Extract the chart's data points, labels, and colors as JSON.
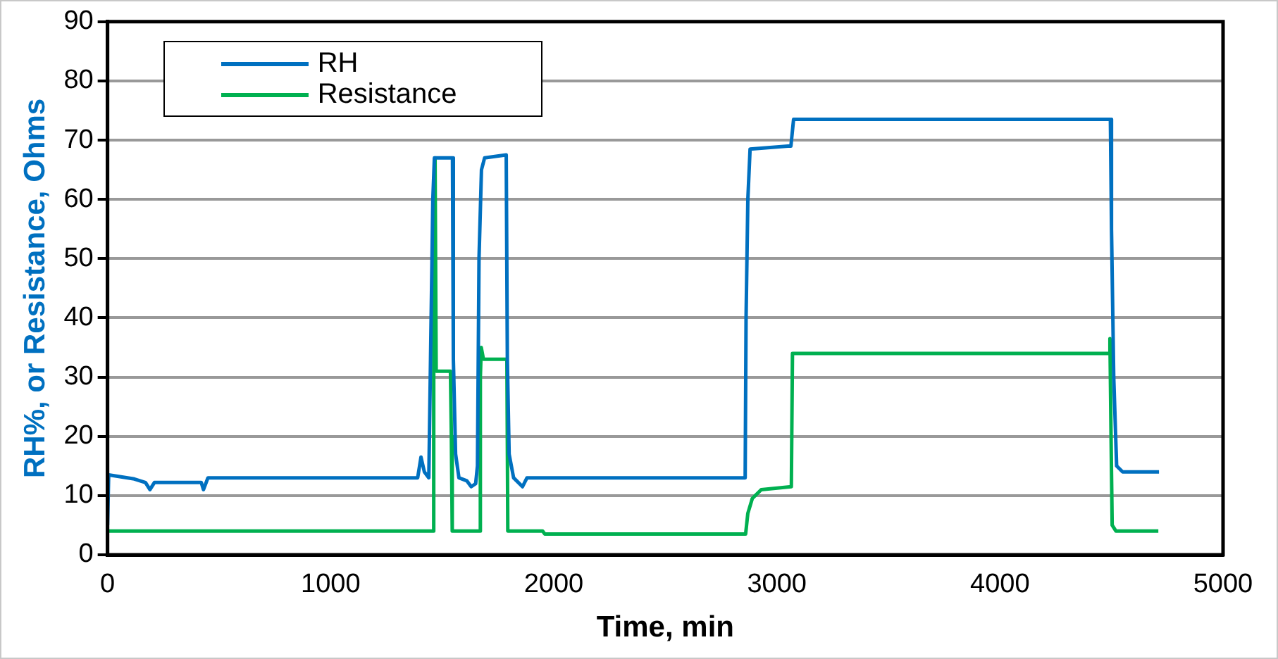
{
  "chart_data": {
    "type": "line",
    "xlabel": "Time, min",
    "ylabel": "RH%, or Resistance, Ohms",
    "xlim": [
      0,
      5000
    ],
    "xticks": [
      0,
      1000,
      2000,
      3000,
      4000,
      5000
    ],
    "ylim": [
      0,
      90
    ],
    "yticks": [
      0,
      10,
      20,
      30,
      40,
      50,
      60,
      70,
      80,
      90
    ],
    "grid": "y",
    "legend": "top left",
    "marker": "none",
    "line_style": "solid",
    "series": [
      {
        "name": "RH",
        "color": "#0070c0",
        "x": [
          0,
          5,
          120,
          170,
          190,
          210,
          420,
          430,
          450,
          700,
          1390,
          1405,
          1420,
          1440,
          1458,
          1465,
          1546,
          1550,
          1560,
          1575,
          1610,
          1630,
          1650,
          1658,
          1665,
          1676,
          1690,
          1787,
          1792,
          1800,
          1820,
          1860,
          1880,
          2858,
          2862,
          2870,
          2880,
          3050,
          3063,
          3075,
          4495,
          4500,
          4510,
          4523,
          4550,
          4713
        ],
        "values": [
          5,
          13.5,
          12.8,
          12.2,
          11,
          12.2,
          12.2,
          11,
          13,
          13,
          13,
          16.5,
          14,
          13,
          60,
          67,
          67,
          33,
          17,
          13,
          12.5,
          11.5,
          12,
          15,
          50,
          65,
          67,
          67.5,
          33,
          17,
          13,
          11.5,
          13,
          13,
          40,
          60,
          68.5,
          69,
          69,
          73.5,
          73.5,
          55,
          30,
          15,
          14,
          14
        ]
      },
      {
        "name": "Resistance",
        "color": "#00b050",
        "x": [
          0,
          1458,
          1462,
          1468,
          1473,
          1537,
          1541,
          1545,
          1667,
          1671,
          1675,
          1685,
          1790,
          1794,
          1950,
          1960,
          2860,
          2870,
          2890,
          2930,
          3065,
          3070,
          4490,
          4493,
          4498,
          4503,
          4520,
          4710
        ],
        "values": [
          4,
          4,
          60,
          67,
          31,
          31,
          20,
          4,
          4,
          30,
          35,
          33,
          33,
          4,
          4,
          3.5,
          3.5,
          7,
          9.5,
          11,
          11.5,
          34,
          34,
          36.5,
          20,
          5,
          4,
          4
        ]
      }
    ]
  }
}
